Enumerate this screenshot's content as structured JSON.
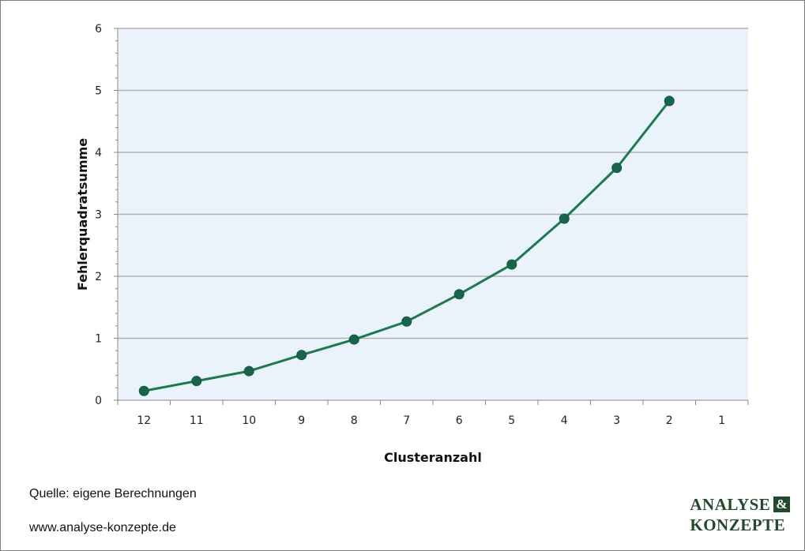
{
  "chart_data": {
    "type": "line",
    "categories": [
      "12",
      "11",
      "10",
      "9",
      "8",
      "7",
      "6",
      "5",
      "4",
      "3",
      "2",
      "1"
    ],
    "series": [
      {
        "values": [
          0.15,
          0.31,
          0.47,
          0.73,
          0.98,
          1.27,
          1.71,
          2.19,
          2.93,
          3.75,
          4.83,
          null
        ]
      }
    ],
    "xlabel": "Clusteranzahl",
    "ylabel": "Fehlerquadratsumme",
    "ylim": [
      0,
      6
    ],
    "yticks": [
      "0",
      "1",
      "2",
      "3",
      "4",
      "5",
      "6"
    ],
    "grid": true,
    "colors": {
      "line": "#1a7a4e",
      "marker": "#17654a",
      "plot_bg": "#eaf3fc",
      "grid": "#b0b0b0"
    }
  },
  "footer": {
    "source": "Quelle: eigene Berechnungen",
    "website": "www.analyse-konzepte.de"
  },
  "logo": {
    "line1": "ANALYSE",
    "amp": "&",
    "line2": "KONZEPTE"
  }
}
